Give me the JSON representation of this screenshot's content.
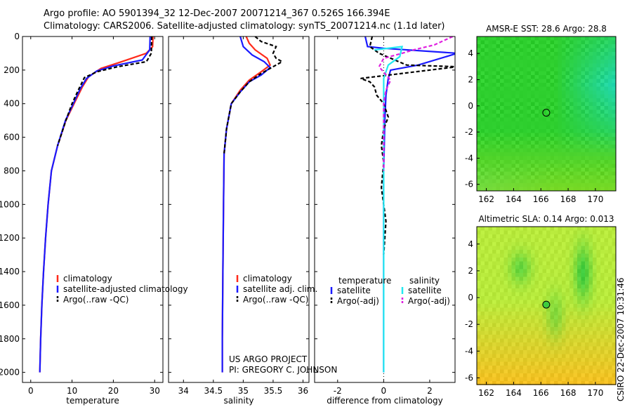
{
  "header": {
    "line1": "Argo profile: AO 5901394_32 12-Dec-2007 20071214_367 0.526S 166.394E",
    "line2": "Climatology: CARS2006. Satellite-adjusted climatology: synTS_20071214.nc (1.1d later)"
  },
  "credits": {
    "line1": "US ARGO PROJECT",
    "line2": "PI: GREGORY C. JOHNSON"
  },
  "stamp": "CSIRO 22-Dec-2007 10:31:46",
  "colors": {
    "climatology": "#ff2a1a",
    "satellite": "#1a1aff",
    "argo": "#000000",
    "sal_satellite": "#22e8f0",
    "sal_argo": "#e020e0"
  },
  "chart_data": [
    {
      "type": "line",
      "xlabel": "temperature",
      "xlim": [
        -2,
        32
      ],
      "ylim": [
        2060,
        0
      ],
      "xticks": [
        0,
        10,
        20,
        30
      ],
      "yticks": [
        0,
        200,
        400,
        600,
        800,
        1000,
        1200,
        1400,
        1600,
        1800,
        2000
      ],
      "legend": [
        "climatology",
        "satellite-adjusted climatology",
        "Argo(..raw -QC)"
      ],
      "series": [
        {
          "name": "climatology",
          "color": "#ff2a1a",
          "dash": "",
          "points": [
            [
              29.6,
              0
            ],
            [
              29.5,
              60
            ],
            [
              28,
              100
            ],
            [
              22,
              150
            ],
            [
              17,
              190
            ],
            [
              14,
              240
            ],
            [
              12.5,
              300
            ],
            [
              10.5,
              400
            ],
            [
              8.5,
              500
            ],
            [
              6.5,
              650
            ],
            [
              5,
              800
            ],
            [
              4.2,
              1000
            ],
            [
              3.6,
              1200
            ],
            [
              3.1,
              1400
            ],
            [
              2.7,
              1600
            ],
            [
              2.4,
              1800
            ],
            [
              2.2,
              2000
            ]
          ]
        },
        {
          "name": "satellite-adjusted climatology",
          "color": "#1a1aff",
          "dash": "",
          "points": [
            [
              28.9,
              0
            ],
            [
              28.8,
              80
            ],
            [
              27,
              140
            ],
            [
              20,
              175
            ],
            [
              16,
              205
            ],
            [
              13.5,
              250
            ],
            [
              12,
              310
            ],
            [
              10.3,
              400
            ],
            [
              8.4,
              500
            ],
            [
              6.5,
              650
            ],
            [
              5,
              800
            ],
            [
              4.2,
              1000
            ],
            [
              3.6,
              1200
            ],
            [
              3.1,
              1400
            ],
            [
              2.7,
              1600
            ],
            [
              2.4,
              1800
            ],
            [
              2.2,
              2000
            ]
          ]
        },
        {
          "name": "Argo(..raw -QC)",
          "color": "#000000",
          "dash": "5,3",
          "points": [
            [
              29.3,
              0
            ],
            [
              29.2,
              100
            ],
            [
              28,
              150
            ],
            [
              21,
              180
            ],
            [
              16,
              210
            ],
            [
              13,
              245
            ],
            [
              11.5,
              320
            ],
            [
              10,
              400
            ],
            [
              8.5,
              500
            ],
            [
              6.5,
              650
            ]
          ]
        }
      ]
    },
    {
      "type": "line",
      "xlabel": "salinity",
      "xlim": [
        33.75,
        36.1
      ],
      "ylim": [
        2060,
        0
      ],
      "xticks": [
        34,
        34.5,
        35,
        35.5,
        36
      ],
      "legend": [
        "climatology",
        "satellite adj. clim.",
        "Argo(..raw -QC)"
      ],
      "series": [
        {
          "name": "climatology",
          "color": "#ff2a1a",
          "dash": "",
          "points": [
            [
              35.05,
              0
            ],
            [
              35.1,
              40
            ],
            [
              35.2,
              80
            ],
            [
              35.4,
              130
            ],
            [
              35.45,
              170
            ],
            [
              35.3,
              210
            ],
            [
              35.1,
              260
            ],
            [
              34.95,
              320
            ],
            [
              34.8,
              400
            ],
            [
              34.72,
              550
            ],
            [
              34.68,
              700
            ],
            [
              34.67,
              1000
            ],
            [
              34.66,
              1400
            ],
            [
              34.65,
              1800
            ],
            [
              34.65,
              2000
            ]
          ]
        },
        {
          "name": "satellite adj. clim.",
          "color": "#1a1aff",
          "dash": "",
          "points": [
            [
              34.95,
              0
            ],
            [
              35.0,
              60
            ],
            [
              35.15,
              110
            ],
            [
              35.35,
              150
            ],
            [
              35.45,
              185
            ],
            [
              35.3,
              230
            ],
            [
              35.1,
              270
            ],
            [
              34.95,
              330
            ],
            [
              34.8,
              400
            ],
            [
              34.72,
              550
            ],
            [
              34.68,
              700
            ],
            [
              34.67,
              1000
            ],
            [
              34.66,
              1400
            ],
            [
              34.65,
              1800
            ],
            [
              34.65,
              2000
            ]
          ]
        },
        {
          "name": "Argo(..raw -QC)",
          "color": "#000000",
          "dash": "5,3",
          "points": [
            [
              35.2,
              0
            ],
            [
              35.3,
              30
            ],
            [
              35.55,
              60
            ],
            [
              35.5,
              100
            ],
            [
              35.55,
              130
            ],
            [
              35.65,
              150
            ],
            [
              35.5,
              180
            ],
            [
              35.3,
              220
            ],
            [
              35.1,
              270
            ],
            [
              34.95,
              330
            ],
            [
              34.8,
              400
            ],
            [
              34.72,
              550
            ],
            [
              34.68,
              700
            ]
          ]
        }
      ]
    },
    {
      "type": "line",
      "xlabel": "difference from climatology",
      "xlim": [
        -3,
        3.1
      ],
      "ylim": [
        2060,
        0
      ],
      "xticks": [
        -2,
        0,
        2
      ],
      "legend": [
        "temperature",
        "satellite",
        "Argo(-adj)",
        "salinity",
        "satellite",
        "Argo(-adj)"
      ],
      "series": [
        {
          "name": "temperature satellite",
          "color": "#1a1aff",
          "dash": "",
          "points": [
            [
              -0.8,
              0
            ],
            [
              -0.7,
              60
            ],
            [
              0,
              70
            ],
            [
              3.2,
              100
            ],
            [
              1.5,
              170
            ],
            [
              0.3,
              200
            ],
            [
              0.2,
              250
            ],
            [
              0.1,
              350
            ],
            [
              0.05,
              500
            ],
            [
              0,
              800
            ],
            [
              0,
              1200
            ],
            [
              0,
              2000
            ]
          ]
        },
        {
          "name": "temperature Argo(-adj)",
          "color": "#000000",
          "dash": "5,3",
          "points": [
            [
              -0.5,
              0
            ],
            [
              -0.6,
              60
            ],
            [
              -0.2,
              100
            ],
            [
              1,
              170
            ],
            [
              3.2,
              180
            ],
            [
              -1,
              250
            ],
            [
              -0.6,
              270
            ],
            [
              -0.4,
              300
            ],
            [
              -0.3,
              350
            ],
            [
              0,
              400
            ],
            [
              0.2,
              480
            ],
            [
              0,
              550
            ],
            [
              -0.1,
              650
            ],
            [
              0,
              750
            ],
            [
              -0.1,
              900
            ],
            [
              0,
              1000
            ],
            [
              0.1,
              1100
            ],
            [
              0,
              1300
            ]
          ]
        },
        {
          "name": "salinity satellite",
          "color": "#22e8f0",
          "dash": "",
          "points": [
            [
              -0.4,
              80
            ],
            [
              0.8,
              60
            ],
            [
              0.7,
              120
            ],
            [
              0.2,
              170
            ],
            [
              0,
              250
            ],
            [
              0,
              500
            ],
            [
              0,
              800
            ],
            [
              0,
              1200
            ],
            [
              0,
              2000
            ]
          ]
        },
        {
          "name": "salinity Argo(-adj)",
          "color": "#e020e0",
          "dash": "5,3",
          "points": [
            [
              3,
              0
            ],
            [
              2.2,
              50
            ],
            [
              1.3,
              80
            ],
            [
              0.8,
              100
            ],
            [
              0,
              130
            ],
            [
              -0.2,
              180
            ],
            [
              0.3,
              260
            ],
            [
              0.1,
              320
            ],
            [
              0,
              400
            ],
            [
              0,
              600
            ],
            [
              0,
              800
            ]
          ]
        }
      ]
    },
    {
      "type": "heatmap",
      "title": "AMSR-E SST: 28.6 Argo: 28.8",
      "xlim": [
        161.3,
        171.5
      ],
      "ylim": [
        -6.5,
        5.3
      ],
      "xticks": [
        162,
        164,
        166,
        168,
        170
      ],
      "yticks": [
        -6,
        -4,
        -2,
        0,
        2,
        4
      ],
      "marker": {
        "lon": 166.394,
        "lat": -0.526
      },
      "palette": [
        "#2ecf2e",
        "#1fd8b8",
        "#a8e020"
      ]
    },
    {
      "type": "heatmap",
      "title": "Altimetric SLA: 0.14 Argo: 0.013",
      "xlim": [
        161.3,
        171.5
      ],
      "ylim": [
        -6.5,
        5.3
      ],
      "xticks": [
        162,
        164,
        166,
        168,
        170
      ],
      "yticks": [
        -6,
        -4,
        -2,
        0,
        2,
        4
      ],
      "marker": {
        "lon": 166.394,
        "lat": -0.526
      },
      "palette": [
        "#b8ea3c",
        "#f4c022",
        "#3dcb3d"
      ]
    }
  ]
}
